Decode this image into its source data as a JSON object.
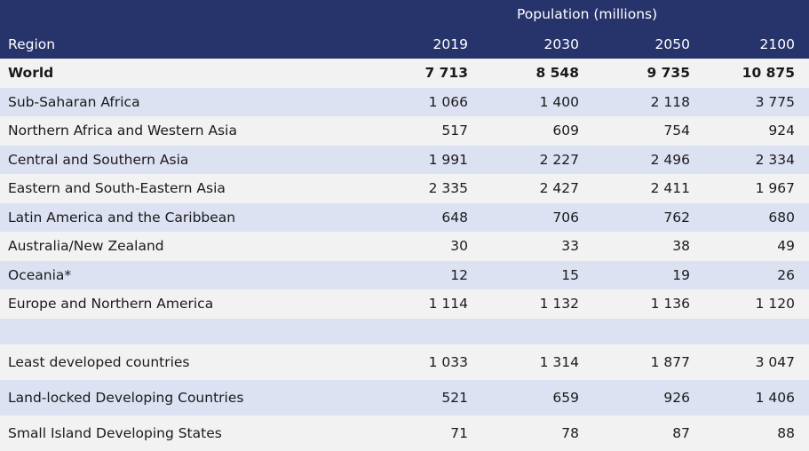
{
  "header": {
    "group_label": "Population (millions)",
    "region_label": "Region",
    "years": [
      "2019",
      "2030",
      "2050",
      "2100"
    ]
  },
  "rows": [
    {
      "region": "World",
      "values": [
        "7 713",
        "8 548",
        "9 735",
        "10 875"
      ]
    },
    {
      "region": "Sub-Saharan Africa",
      "values": [
        "1 066",
        "1 400",
        "2 118",
        "3 775"
      ]
    },
    {
      "region": "Northern Africa and Western Asia",
      "values": [
        "517",
        "609",
        "754",
        "924"
      ]
    },
    {
      "region": "Central and Southern Asia",
      "values": [
        "1 991",
        "2 227",
        "2 496",
        "2 334"
      ]
    },
    {
      "region": "Eastern and South-Eastern Asia",
      "values": [
        "2 335",
        "2 427",
        "2 411",
        "1 967"
      ]
    },
    {
      "region": "Latin America and the Caribbean",
      "values": [
        "648",
        "706",
        "762",
        "680"
      ]
    },
    {
      "region": "Australia/New Zealand",
      "values": [
        "30",
        "33",
        "38",
        "49"
      ]
    },
    {
      "region": "Oceania*",
      "values": [
        "12",
        "15",
        "19",
        "26"
      ]
    },
    {
      "region": "Europe and Northern America",
      "values": [
        "1 114",
        "1 132",
        "1 136",
        "1 120"
      ]
    }
  ],
  "group_rows": [
    {
      "region": "Least developed countries",
      "values": [
        "1 033",
        "1 314",
        "1 877",
        "3 047"
      ]
    },
    {
      "region": "Land-locked Developing Countries",
      "values": [
        "521",
        "659",
        "926",
        "1 406"
      ]
    },
    {
      "region": "Small Island Developing States",
      "values": [
        "71",
        "78",
        "87",
        "88"
      ]
    }
  ],
  "colors": {
    "header_bg": "#27336b",
    "shade_bg": "#dde2f3",
    "plain_bg": "#f2f2f2"
  }
}
